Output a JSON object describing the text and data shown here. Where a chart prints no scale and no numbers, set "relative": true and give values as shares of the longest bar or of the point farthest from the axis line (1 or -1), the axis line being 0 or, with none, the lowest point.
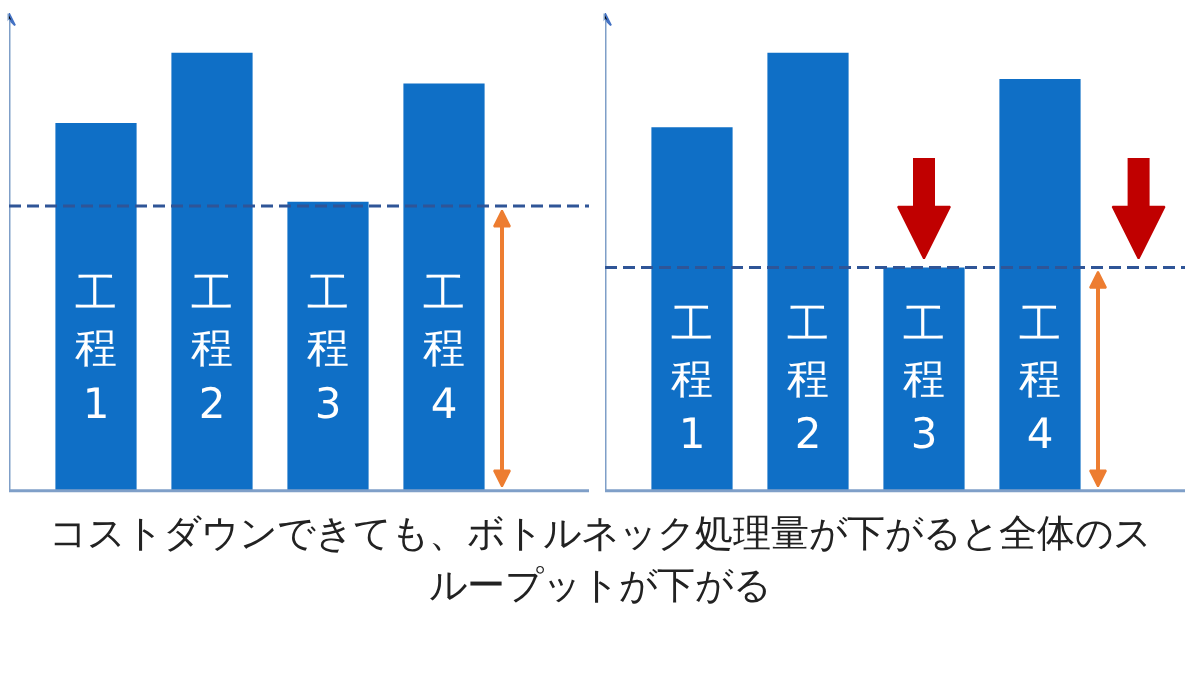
{
  "chart_data": [
    {
      "type": "bar",
      "categories": [
        "工程1",
        "工程2",
        "工程3",
        "工程4"
      ],
      "values": [
        0.84,
        1,
        0.66,
        0.93
      ],
      "color": "#0f6fc6",
      "relative": true,
      "ref_lines": [
        {
          "axis": "y",
          "value": 0.65,
          "color": "#2f5597",
          "line_style": "dashed"
        }
      ]
    },
    {
      "type": "bar",
      "categories": [
        "工程1",
        "工程2",
        "工程3",
        "工程4"
      ],
      "values": [
        0.83,
        1,
        0.51,
        0.94
      ],
      "color": "#0f6fc6",
      "relative": true,
      "ref_lines": [
        {
          "axis": "y",
          "value": 0.51,
          "color": "#2f5597",
          "line_style": "dashed"
        }
      ],
      "annotations": [
        "コストダウンできても、ボトルネック処理量が下がると全体のスループットが下がる"
      ]
    }
  ]
}
